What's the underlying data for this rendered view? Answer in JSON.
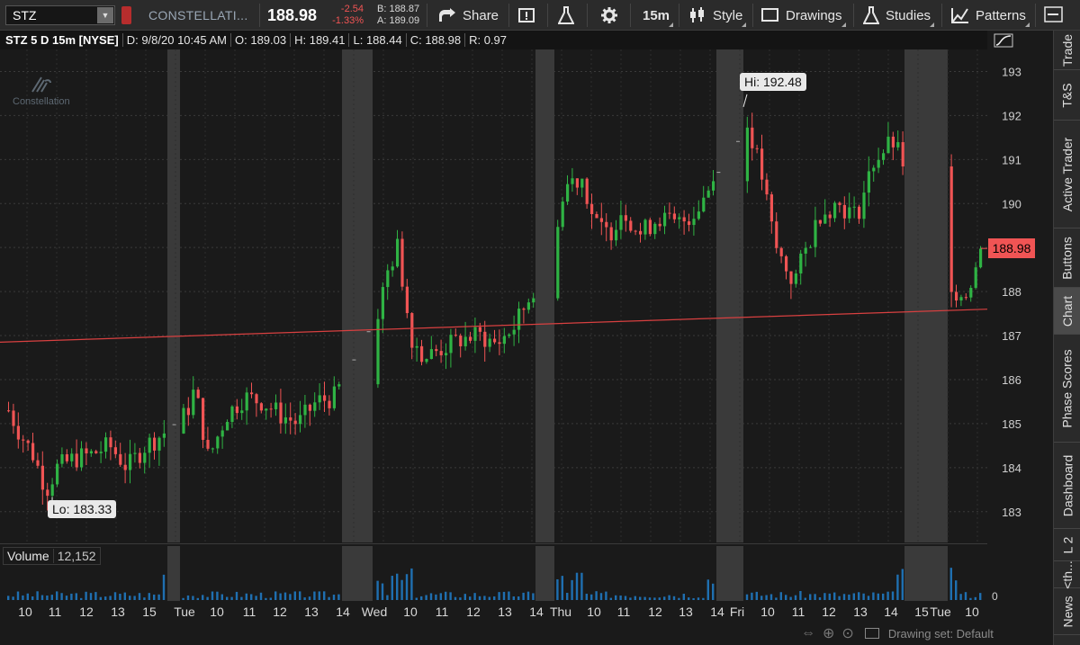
{
  "toolbar": {
    "symbol": "STZ",
    "company": "CONSTELLATI...",
    "last": "188.98",
    "net_change": "-2.54",
    "pct_change": "-1.33%",
    "bid": "B: 188.87",
    "ask": "A: 189.09",
    "share_label": "Share",
    "timeframe_label": "15m",
    "style_label": "Style",
    "drawings_label": "Drawings",
    "studies_label": "Studies",
    "patterns_label": "Patterns"
  },
  "infobar": {
    "title": "STZ 5 D 15m [NYSE]",
    "date": "D: 9/8/20 10:45 AM",
    "open": "O: 189.03",
    "high": "H: 189.41",
    "low": "L: 188.44",
    "close": "C: 188.98",
    "range": "R: 0.97"
  },
  "logo_text": "Constellation",
  "hi_label": "Hi: 192.48",
  "lo_label": "Lo: 183.33",
  "price_tag": "188.98",
  "volume": {
    "label": "Volume",
    "value": "12,152"
  },
  "side_tabs": [
    "Trade",
    "T&S",
    "Active Trader",
    "Buttons",
    "Chart",
    "Phase Scores",
    "Dashboard",
    "L 2",
    "<th...",
    "News"
  ],
  "status": {
    "drawing_set": "Drawing set: Default"
  },
  "colors": {
    "up": "#2fb344",
    "down": "#f05454",
    "trendline": "#d84040",
    "ext_hours": "#3a3a3a",
    "volume": "#1f6fb0"
  },
  "chart_data": {
    "type": "candlestick",
    "ylim": [
      182.3,
      193.5
    ],
    "yticks": [
      183,
      184,
      185,
      186,
      187,
      188,
      189,
      190,
      191,
      192,
      193
    ],
    "x_tick_labels": [
      "10",
      "11",
      "12",
      "13",
      "15",
      "Tue",
      "10",
      "11",
      "12",
      "13",
      "14",
      "Wed",
      "10",
      "11",
      "12",
      "13",
      "14",
      "Thu",
      "10",
      "11",
      "12",
      "13",
      "14",
      "Fri",
      "10",
      "11",
      "12",
      "13",
      "14",
      "15",
      "Tue",
      "10"
    ],
    "volume_ymax_label": "0",
    "sessions": [
      {
        "day": "Wed 9/2",
        "open_ref": [
          185.2,
          183.6,
          184.3,
          185.0
        ]
      },
      {
        "day": "Thu 9/3",
        "series": "bars"
      },
      {
        "day": "Fri 9/4"
      },
      {
        "day": "Tue 9/8"
      }
    ],
    "trendline": {
      "start_price": 186.85,
      "end_price": 187.6
    },
    "hi": 192.48,
    "lo": 183.33,
    "last": 188.98
  }
}
